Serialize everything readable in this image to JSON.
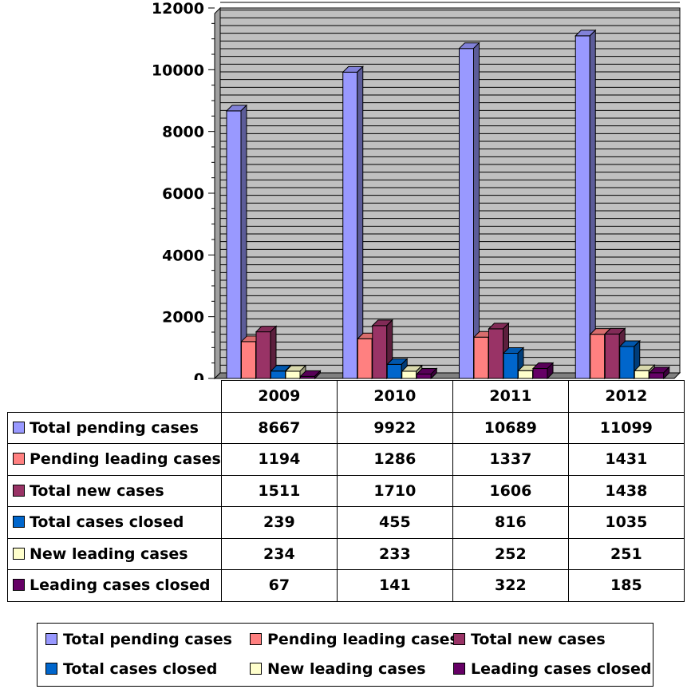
{
  "chart_data": {
    "type": "bar",
    "categories": [
      "2009",
      "2010",
      "2011",
      "2012"
    ],
    "series": [
      {
        "name": "Total pending cases",
        "color": "#9999FF",
        "values": [
          8667,
          9922,
          10689,
          11099
        ]
      },
      {
        "name": "Pending leading cases",
        "color": "#FF8080",
        "values": [
          1194,
          1286,
          1337,
          1431
        ]
      },
      {
        "name": "Total new cases",
        "color": "#993366",
        "values": [
          1511,
          1710,
          1606,
          1438
        ]
      },
      {
        "name": "Total cases closed",
        "color": "#0066CC",
        "values": [
          239,
          455,
          816,
          1035
        ]
      },
      {
        "name": "New leading cases",
        "color": "#FFFFCC",
        "values": [
          234,
          233,
          252,
          251
        ]
      },
      {
        "name": "Leading cases closed",
        "color": "#660066",
        "values": [
          67,
          141,
          322,
          185
        ]
      }
    ],
    "ylim": [
      0,
      12000
    ],
    "yticks": [
      "0",
      "2000",
      "4000",
      "6000",
      "8000",
      "10000",
      "12000"
    ],
    "title": "",
    "xlabel": "",
    "ylabel": "",
    "legend": "bottom",
    "grid": true,
    "data_table": true
  }
}
